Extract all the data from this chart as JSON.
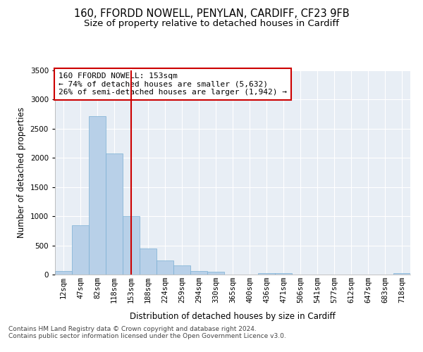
{
  "title1": "160, FFORDD NOWELL, PENYLAN, CARDIFF, CF23 9FB",
  "title2": "Size of property relative to detached houses in Cardiff",
  "xlabel": "Distribution of detached houses by size in Cardiff",
  "ylabel": "Number of detached properties",
  "categories": [
    "12sqm",
    "47sqm",
    "82sqm",
    "118sqm",
    "153sqm",
    "188sqm",
    "224sqm",
    "259sqm",
    "294sqm",
    "330sqm",
    "365sqm",
    "400sqm",
    "436sqm",
    "471sqm",
    "506sqm",
    "541sqm",
    "577sqm",
    "612sqm",
    "647sqm",
    "683sqm",
    "718sqm"
  ],
  "values": [
    65,
    850,
    2720,
    2075,
    1005,
    450,
    245,
    155,
    65,
    50,
    0,
    0,
    30,
    25,
    0,
    0,
    0,
    0,
    0,
    0,
    25
  ],
  "bar_color": "#b8d0e8",
  "bar_edge_color": "#7aafd4",
  "vline_x": 4,
  "vline_color": "#cc0000",
  "annotation_line1": "160 FFORDD NOWELL: 153sqm",
  "annotation_line2": "← 74% of detached houses are smaller (5,632)",
  "annotation_line3": "26% of semi-detached houses are larger (1,942) →",
  "annotation_box_color": "#ffffff",
  "annotation_box_edge": "#cc0000",
  "ylim": [
    0,
    3500
  ],
  "yticks": [
    0,
    500,
    1000,
    1500,
    2000,
    2500,
    3000,
    3500
  ],
  "footer1": "Contains HM Land Registry data © Crown copyright and database right 2024.",
  "footer2": "Contains public sector information licensed under the Open Government Licence v3.0.",
  "plot_background": "#e8eef5",
  "title1_fontsize": 10.5,
  "title2_fontsize": 9.5,
  "xlabel_fontsize": 8.5,
  "ylabel_fontsize": 8.5,
  "tick_fontsize": 7.5,
  "annotation_fontsize": 8,
  "footer_fontsize": 6.5
}
